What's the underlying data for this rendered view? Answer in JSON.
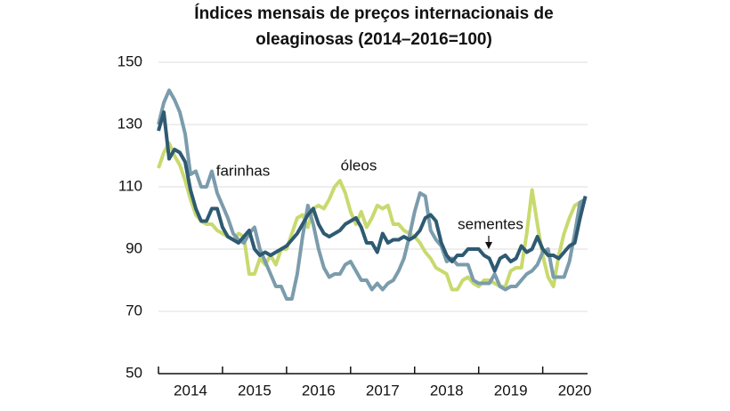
{
  "chart_data": {
    "type": "line",
    "title": [
      "Índices mensais de preços internacionais de",
      "oleaginosas (2014–2016=100)"
    ],
    "x": [
      2014,
      2014.0833,
      2014.1667,
      2014.25,
      2014.3333,
      2014.4167,
      2014.5,
      2014.5833,
      2014.6667,
      2014.75,
      2014.8333,
      2014.9167,
      2015,
      2015.0833,
      2015.1667,
      2015.25,
      2015.3333,
      2015.4167,
      2015.5,
      2015.5833,
      2015.6667,
      2015.75,
      2015.8333,
      2015.9167,
      2016,
      2016.0833,
      2016.1667,
      2016.25,
      2016.3333,
      2016.4167,
      2016.5,
      2016.5833,
      2016.6667,
      2016.75,
      2016.8333,
      2016.9167,
      2017,
      2017.0833,
      2017.1667,
      2017.25,
      2017.3333,
      2017.4167,
      2017.5,
      2017.5833,
      2017.6667,
      2017.75,
      2017.8333,
      2017.9167,
      2018,
      2018.0833,
      2018.1667,
      2018.25,
      2018.3333,
      2018.4167,
      2018.5,
      2018.5833,
      2018.6667,
      2018.75,
      2018.8333,
      2018.9167,
      2019,
      2019.0833,
      2019.1667,
      2019.25,
      2019.3333,
      2019.4167,
      2019.5,
      2019.5833,
      2019.6667,
      2019.75,
      2019.8333,
      2019.9167,
      2020,
      2020.0833,
      2020.1667,
      2020.25,
      2020.3333,
      2020.4167,
      2020.5,
      2020.5833,
      2020.6667
    ],
    "series": [
      {
        "name": "óleos",
        "color": "#c8da6e",
        "values": [
          116,
          121,
          124,
          120,
          117,
          112,
          106,
          101,
          99,
          98,
          98,
          96,
          95,
          94,
          93,
          95,
          94,
          82,
          82,
          87,
          85,
          88,
          85,
          90,
          90,
          95,
          100,
          101,
          97,
          103,
          104,
          103,
          106,
          110,
          112,
          108,
          102,
          98,
          102,
          97,
          100,
          104,
          103,
          104,
          98,
          98,
          96,
          95,
          94,
          92,
          89,
          87,
          84,
          83,
          82,
          77,
          77,
          80,
          81,
          79,
          78,
          80,
          80,
          79,
          78,
          78,
          83,
          84,
          84,
          95,
          109,
          98,
          88,
          81,
          78,
          88,
          95,
          100,
          104,
          105,
          105
        ]
      },
      {
        "name": "farinhas",
        "color": "#7b9cac",
        "values": [
          130,
          137,
          141,
          138,
          134,
          127,
          114,
          115,
          110,
          110,
          115,
          108,
          104,
          100,
          95,
          93,
          92,
          95,
          97,
          90,
          86,
          82,
          78,
          78,
          74,
          74,
          82,
          94,
          104,
          98,
          90,
          84,
          81,
          82,
          82,
          85,
          86,
          83,
          80,
          80,
          77,
          79,
          77,
          79,
          80,
          83,
          87,
          94,
          102,
          108,
          107,
          96,
          93,
          91,
          86,
          87,
          85,
          85,
          85,
          80,
          79,
          79,
          79,
          82,
          78,
          77,
          78,
          78,
          80,
          82,
          83,
          85,
          89,
          90,
          81,
          81,
          81,
          86,
          95,
          105,
          106
        ]
      },
      {
        "name": "sementes",
        "color": "#2e5a72",
        "values": [
          128,
          134,
          119,
          122,
          121,
          118,
          109,
          103,
          99,
          99,
          103,
          103,
          97,
          94,
          93,
          92,
          94,
          96,
          90,
          88,
          89,
          88,
          89,
          90,
          91,
          93,
          95,
          98,
          101,
          103,
          98,
          95,
          94,
          95,
          96,
          98,
          99,
          100,
          97,
          92,
          92,
          89,
          95,
          92,
          93,
          93,
          94,
          93,
          94,
          96,
          100,
          101,
          99,
          92,
          88,
          86,
          88,
          88,
          90,
          90,
          90,
          88,
          87,
          83,
          87,
          88,
          86,
          87,
          91,
          89,
          90,
          94,
          90,
          88,
          88,
          87,
          89,
          91,
          92,
          100,
          107
        ]
      }
    ],
    "xlim": [
      2014,
      2020.7
    ],
    "xticks": [
      2014,
      2015,
      2016,
      2017,
      2018,
      2019,
      2020
    ],
    "ylim": [
      50,
      150
    ],
    "yticks": [
      50,
      70,
      90,
      110,
      130,
      150
    ],
    "grid": true
  }
}
